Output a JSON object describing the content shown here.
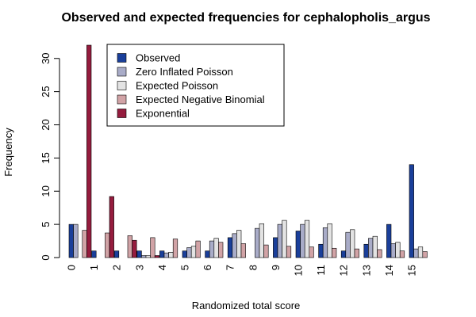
{
  "chart_data": {
    "type": "bar",
    "title": "Observed and expected frequencies for cephalopholis_argus",
    "xlabel": "Randomized total score",
    "ylabel": "Frequency",
    "ylim": [
      0,
      32
    ],
    "yticks": [
      0,
      5,
      10,
      15,
      20,
      25,
      30
    ],
    "categories": [
      "0",
      "1",
      "2",
      "3",
      "4",
      "5",
      "6",
      "7",
      "8",
      "9",
      "10",
      "11",
      "12",
      "13",
      "14",
      "15"
    ],
    "legend_position": "top-left",
    "grid": false,
    "series": [
      {
        "name": "Observed",
        "color": "#1a3f9a",
        "values": [
          5,
          1,
          1,
          1,
          1,
          1,
          1,
          3,
          0,
          3,
          4,
          2,
          1,
          2,
          5,
          14
        ]
      },
      {
        "name": "Zero Inflated Poisson",
        "color": "#a9acc8",
        "values": [
          5,
          0,
          0,
          0.3,
          0.7,
          1.5,
          2.5,
          3.6,
          4.4,
          5.0,
          5.0,
          4.5,
          3.8,
          2.9,
          2.1,
          1.3
        ]
      },
      {
        "name": "Expected Poisson",
        "color": "#e3e3e3",
        "values": [
          0,
          0,
          0,
          0.3,
          0.8,
          1.7,
          2.9,
          4.1,
          5.1,
          5.6,
          5.6,
          5.1,
          4.2,
          3.2,
          2.3,
          1.6
        ]
      },
      {
        "name": "Expected Negative Binomial",
        "color": "#d1a3a6",
        "values": [
          4.1,
          3.7,
          3.3,
          3.0,
          2.8,
          2.5,
          2.3,
          2.1,
          1.9,
          1.7,
          1.6,
          1.4,
          1.3,
          1.2,
          1.0,
          0.9
        ]
      },
      {
        "name": "Exponential",
        "color": "#951c3e",
        "values": [
          32,
          9.2,
          2.6,
          0.3,
          0,
          0,
          0,
          0,
          0,
          0,
          0,
          0,
          0,
          0,
          0,
          0
        ]
      }
    ]
  }
}
